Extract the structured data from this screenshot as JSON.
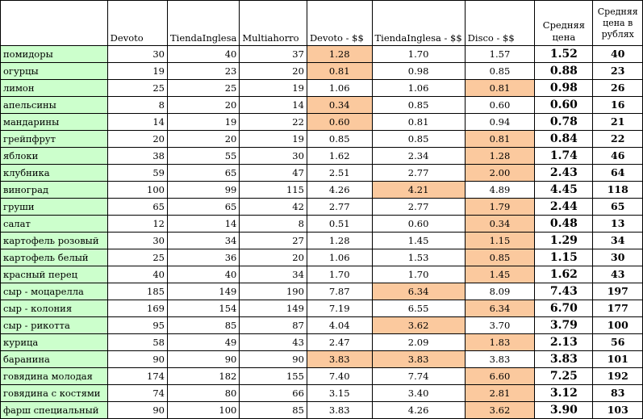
{
  "headers": {
    "name": "",
    "devoto": "Devoto",
    "tienda": "TiendaInglesa",
    "multi": "Multiahorro",
    "devoto_usd": "Devoto - $$",
    "tienda_usd": "TiendaInglesa - $$",
    "disco_usd": "Disco - $$",
    "avg": "Средняя цена",
    "rub": "Средняя цена в рублях"
  },
  "highlight_color": "#fbc99e",
  "name_column_color": "#ccffcc",
  "rows": [
    {
      "name": "помидоры",
      "devoto": "30",
      "tienda": "40",
      "multi": "37",
      "devoto_usd": "1.28",
      "tienda_usd": "1.70",
      "disco_usd": "1.57",
      "avg": "1.52",
      "rub": "40",
      "hl": "devoto_usd"
    },
    {
      "name": "огурцы",
      "devoto": "19",
      "tienda": "23",
      "multi": "20",
      "devoto_usd": "0.81",
      "tienda_usd": "0.98",
      "disco_usd": "0.85",
      "avg": "0.88",
      "rub": "23",
      "hl": "devoto_usd"
    },
    {
      "name": "лимон",
      "devoto": "25",
      "tienda": "25",
      "multi": "19",
      "devoto_usd": "1.06",
      "tienda_usd": "1.06",
      "disco_usd": "0.81",
      "avg": "0.98",
      "rub": "26",
      "hl": "disco_usd"
    },
    {
      "name": "апельсины",
      "devoto": "8",
      "tienda": "20",
      "multi": "14",
      "devoto_usd": "0.34",
      "tienda_usd": "0.85",
      "disco_usd": "0.60",
      "avg": "0.60",
      "rub": "16",
      "hl": "devoto_usd"
    },
    {
      "name": "мандарины",
      "devoto": "14",
      "tienda": "19",
      "multi": "22",
      "devoto_usd": "0.60",
      "tienda_usd": "0.81",
      "disco_usd": "0.94",
      "avg": "0.78",
      "rub": "21",
      "hl": "devoto_usd"
    },
    {
      "name": "грейпфрут",
      "devoto": "20",
      "tienda": "20",
      "multi": "19",
      "devoto_usd": "0.85",
      "tienda_usd": "0.85",
      "disco_usd": "0.81",
      "avg": "0.84",
      "rub": "22",
      "hl": "disco_usd"
    },
    {
      "name": "яблоки",
      "devoto": "38",
      "tienda": "55",
      "multi": "30",
      "devoto_usd": "1.62",
      "tienda_usd": "2.34",
      "disco_usd": "1.28",
      "avg": "1.74",
      "rub": "46",
      "hl": "disco_usd"
    },
    {
      "name": "клубника",
      "devoto": "59",
      "tienda": "65",
      "multi": "47",
      "devoto_usd": "2.51",
      "tienda_usd": "2.77",
      "disco_usd": "2.00",
      "avg": "2.43",
      "rub": "64",
      "hl": "disco_usd"
    },
    {
      "name": "виноград",
      "devoto": "100",
      "tienda": "99",
      "multi": "115",
      "devoto_usd": "4.26",
      "tienda_usd": "4.21",
      "disco_usd": "4.89",
      "avg": "4.45",
      "rub": "118",
      "hl": "tienda_usd"
    },
    {
      "name": "груши",
      "devoto": "65",
      "tienda": "65",
      "multi": "42",
      "devoto_usd": "2.77",
      "tienda_usd": "2.77",
      "disco_usd": "1.79",
      "avg": "2.44",
      "rub": "65",
      "hl": "disco_usd"
    },
    {
      "name": "салат",
      "devoto": "12",
      "tienda": "14",
      "multi": "8",
      "devoto_usd": "0.51",
      "tienda_usd": "0.60",
      "disco_usd": "0.34",
      "avg": "0.48",
      "rub": "13",
      "hl": "disco_usd"
    },
    {
      "name": "картофель розовый",
      "devoto": "30",
      "tienda": "34",
      "multi": "27",
      "devoto_usd": "1.28",
      "tienda_usd": "1.45",
      "disco_usd": "1.15",
      "avg": "1.29",
      "rub": "34",
      "hl": "disco_usd"
    },
    {
      "name": "картофель белый",
      "devoto": "25",
      "tienda": "36",
      "multi": "20",
      "devoto_usd": "1.06",
      "tienda_usd": "1.53",
      "disco_usd": "0.85",
      "avg": "1.15",
      "rub": "30",
      "hl": "disco_usd"
    },
    {
      "name": "красный перец",
      "devoto": "40",
      "tienda": "40",
      "multi": "34",
      "devoto_usd": "1.70",
      "tienda_usd": "1.70",
      "disco_usd": "1.45",
      "avg": "1.62",
      "rub": "43",
      "hl": "disco_usd"
    },
    {
      "name": "сыр - моцарелла",
      "devoto": "185",
      "tienda": "149",
      "multi": "190",
      "devoto_usd": "7.87",
      "tienda_usd": "6.34",
      "disco_usd": "8.09",
      "avg": "7.43",
      "rub": "197",
      "hl": "tienda_usd"
    },
    {
      "name": "сыр - колония",
      "devoto": "169",
      "tienda": "154",
      "multi": "149",
      "devoto_usd": "7.19",
      "tienda_usd": "6.55",
      "disco_usd": "6.34",
      "avg": "6.70",
      "rub": "177",
      "hl": "disco_usd"
    },
    {
      "name": "сыр - рикотта",
      "devoto": "95",
      "tienda": "85",
      "multi": "87",
      "devoto_usd": "4.04",
      "tienda_usd": "3.62",
      "disco_usd": "3.70",
      "avg": "3.79",
      "rub": "100",
      "hl": "tienda_usd"
    },
    {
      "name": "курица",
      "devoto": "58",
      "tienda": "49",
      "multi": "43",
      "devoto_usd": "2.47",
      "tienda_usd": "2.09",
      "disco_usd": "1.83",
      "avg": "2.13",
      "rub": "56",
      "hl": "disco_usd"
    },
    {
      "name": "баранина",
      "devoto": "90",
      "tienda": "90",
      "multi": "90",
      "devoto_usd": "3.83",
      "tienda_usd": "3.83",
      "disco_usd": "3.83",
      "avg": "3.83",
      "rub": "101",
      "hl": "devoto_usd,tienda_usd"
    },
    {
      "name": "говядина молодая",
      "devoto": "174",
      "tienda": "182",
      "multi": "155",
      "devoto_usd": "7.40",
      "tienda_usd": "7.74",
      "disco_usd": "6.60",
      "avg": "7.25",
      "rub": "192",
      "hl": "disco_usd"
    },
    {
      "name": "говядина с костями",
      "devoto": "74",
      "tienda": "80",
      "multi": "66",
      "devoto_usd": "3.15",
      "tienda_usd": "3.40",
      "disco_usd": "2.81",
      "avg": "3.12",
      "rub": "83",
      "hl": "disco_usd"
    },
    {
      "name": "фарш специальный",
      "devoto": "90",
      "tienda": "100",
      "multi": "85",
      "devoto_usd": "3.83",
      "tienda_usd": "4.26",
      "disco_usd": "3.62",
      "avg": "3.90",
      "rub": "103",
      "hl": "disco_usd"
    }
  ]
}
